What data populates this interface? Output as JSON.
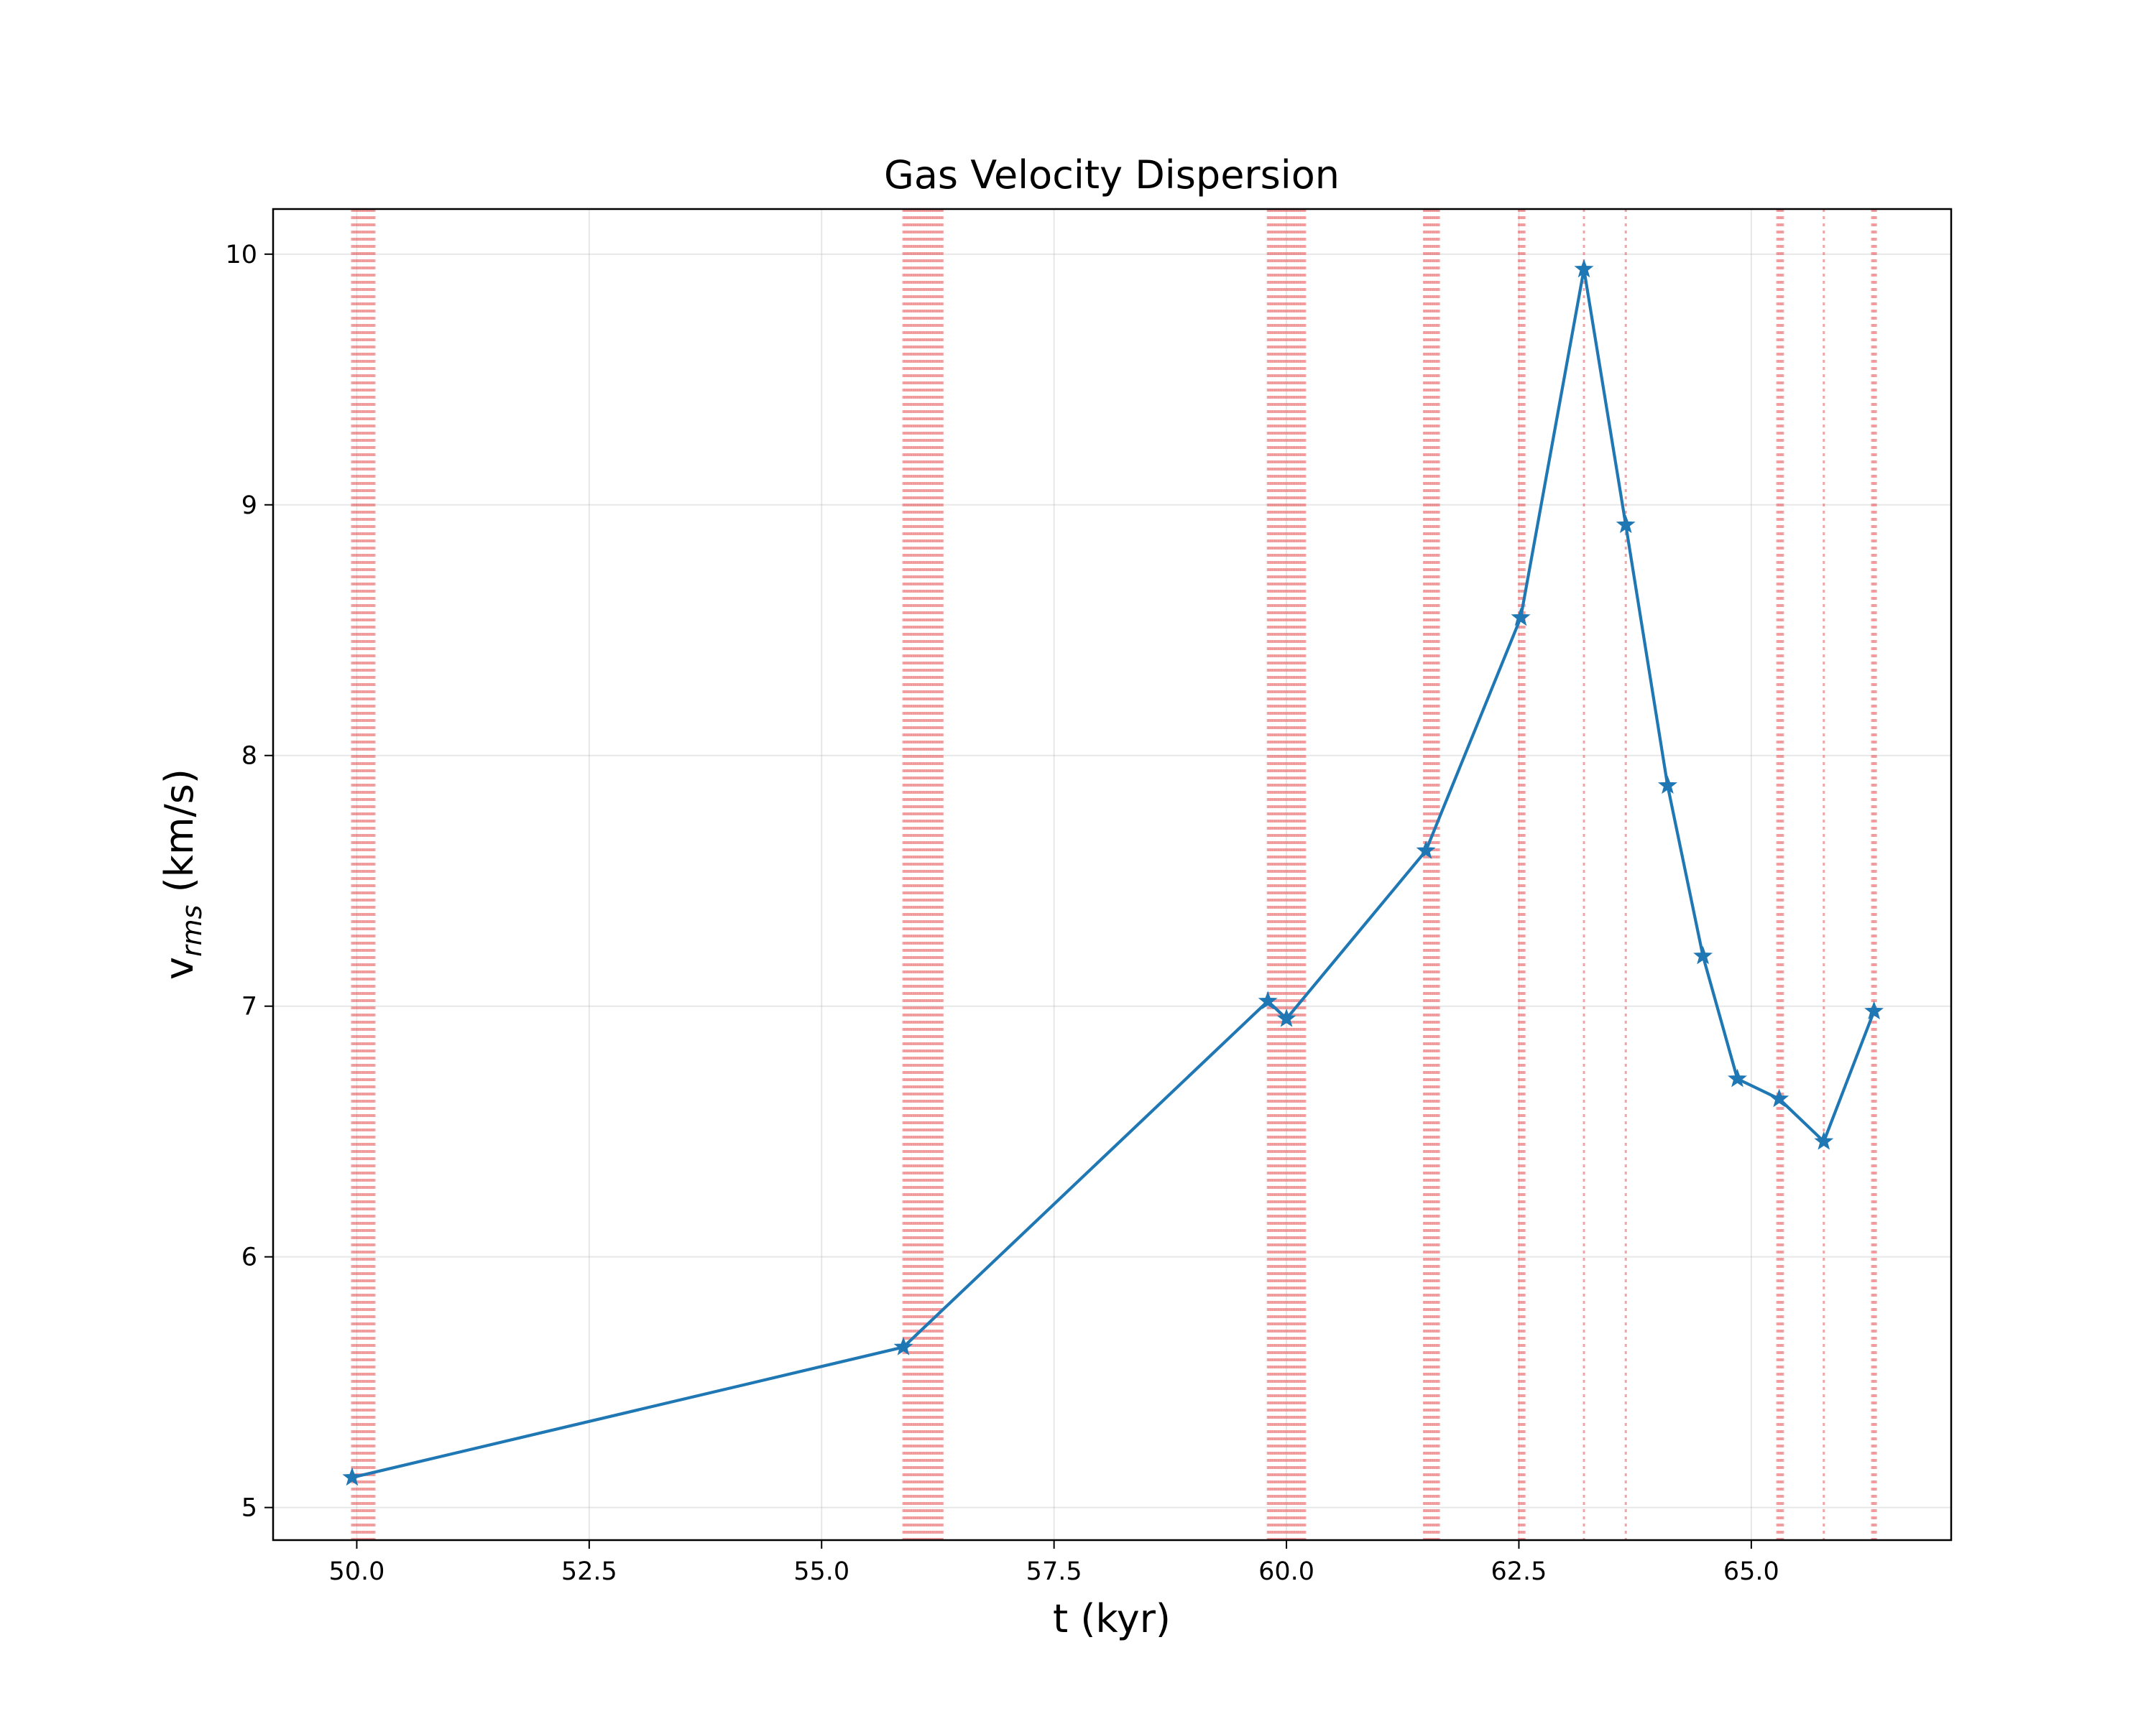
{
  "chart_data": {
    "type": "line",
    "title": "Gas Velocity Dispersion",
    "xlabel": "t (kyr)",
    "ylabel": "v",
    "ylabel_subscript": "rms",
    "ylabel_units": " (km/s)",
    "xlim": [
      49.1,
      67.15
    ],
    "ylim": [
      4.87,
      10.18
    ],
    "xticks": [
      50.0,
      52.5,
      55.0,
      57.5,
      60.0,
      62.5,
      65.0
    ],
    "xtick_labels": [
      "50.0",
      "52.5",
      "55.0",
      "57.5",
      "60.0",
      "62.5",
      "65.0"
    ],
    "yticks": [
      5,
      6,
      7,
      8,
      9,
      10
    ],
    "ytick_labels": [
      "5",
      "6",
      "7",
      "8",
      "9",
      "10"
    ],
    "grid": true,
    "series": [
      {
        "color": "#1f77b4",
        "marker": "star",
        "x": [
          49.95,
          55.88,
          59.8,
          60.0,
          61.5,
          62.52,
          63.2,
          63.65,
          64.1,
          64.48,
          64.85,
          65.3,
          65.78,
          66.32
        ],
        "y": [
          5.12,
          5.64,
          7.02,
          6.95,
          7.62,
          8.55,
          9.94,
          8.92,
          7.88,
          7.2,
          6.71,
          6.63,
          6.46,
          6.98
        ]
      }
    ],
    "vertical_event_lines": {
      "color": "#e8575a",
      "style": "dotted",
      "x": [
        49.95,
        49.97,
        49.99,
        50.01,
        50.03,
        50.05,
        50.07,
        50.09,
        50.11,
        50.13,
        50.15,
        50.17,
        50.19,
        55.88,
        55.9,
        55.92,
        55.94,
        55.96,
        55.98,
        56.0,
        56.02,
        56.04,
        56.06,
        56.08,
        56.1,
        56.12,
        56.14,
        56.16,
        56.18,
        56.2,
        56.22,
        56.24,
        56.26,
        56.28,
        56.3,
        59.8,
        59.82,
        59.84,
        59.86,
        59.88,
        59.9,
        59.92,
        59.94,
        59.96,
        59.98,
        60.0,
        60.02,
        60.04,
        60.06,
        60.08,
        60.1,
        60.12,
        60.14,
        60.16,
        60.18,
        60.2,
        61.48,
        61.5,
        61.52,
        61.54,
        61.56,
        61.58,
        61.6,
        61.62,
        61.64,
        62.5,
        62.52,
        62.54,
        62.56,
        63.2,
        63.65,
        65.28,
        65.3,
        65.32,
        65.34,
        65.78,
        66.3,
        66.32,
        66.34
      ]
    }
  }
}
